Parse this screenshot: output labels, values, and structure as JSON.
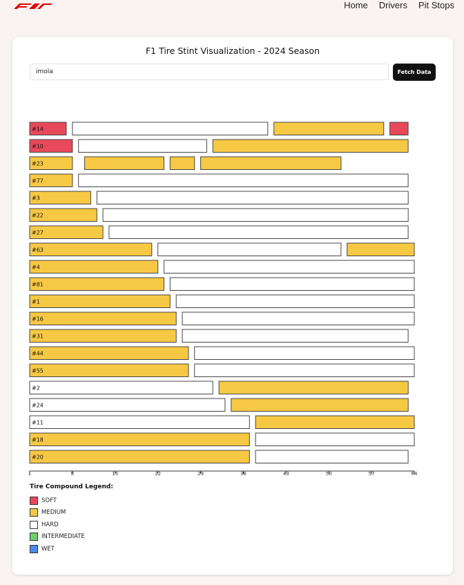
{
  "nav": {
    "links": [
      "Home",
      "Drivers",
      "Pit Stops"
    ]
  },
  "page": {
    "title": "F1 Tire Stint Visualization - 2024 Season"
  },
  "search": {
    "value": "imola",
    "button_label": "Fetch Data"
  },
  "colors": {
    "SOFT": "#e8495a",
    "MEDIUM": "#f7c844",
    "HARD": "#ffffff",
    "INTERMEDIATE": "#6fcf6a",
    "WET": "#4a8be8",
    "brand": "#e10600"
  },
  "legend": {
    "title": "Tire Compound Legend:",
    "items": [
      {
        "label": "SOFT",
        "compound": "SOFT"
      },
      {
        "label": "MEDIUM",
        "compound": "MEDIUM"
      },
      {
        "label": "HARD",
        "compound": "HARD"
      },
      {
        "label": "INTERMEDIATE",
        "compound": "INTERMEDIATE"
      },
      {
        "label": "WET",
        "compound": "WET"
      }
    ]
  },
  "chart_data": {
    "type": "bar",
    "subtype": "horizontal-stacked-stints",
    "x_ticks": [
      1,
      8,
      15,
      22,
      29,
      36,
      43,
      50,
      57,
      64
    ],
    "xlim": [
      1,
      64
    ],
    "drivers": [
      {
        "label": "#14",
        "stints": [
          {
            "compound": "SOFT",
            "start": 1,
            "end": 7
          },
          {
            "compound": "HARD",
            "start": 8,
            "end": 40
          },
          {
            "compound": "MEDIUM",
            "start": 41,
            "end": 59
          },
          {
            "compound": "SOFT",
            "start": 60,
            "end": 63
          }
        ]
      },
      {
        "label": "#10",
        "stints": [
          {
            "compound": "SOFT",
            "start": 1,
            "end": 8
          },
          {
            "compound": "HARD",
            "start": 9,
            "end": 30
          },
          {
            "compound": "MEDIUM",
            "start": 31,
            "end": 63
          }
        ]
      },
      {
        "label": "#23",
        "stints": [
          {
            "compound": "MEDIUM",
            "start": 1,
            "end": 8
          },
          {
            "compound": "MEDIUM",
            "start": 10,
            "end": 23
          },
          {
            "compound": "MEDIUM",
            "start": 24,
            "end": 28
          },
          {
            "compound": "MEDIUM",
            "start": 29,
            "end": 52
          }
        ]
      },
      {
        "label": "#77",
        "stints": [
          {
            "compound": "MEDIUM",
            "start": 1,
            "end": 8
          },
          {
            "compound": "HARD",
            "start": 9,
            "end": 63
          }
        ]
      },
      {
        "label": "#3",
        "stints": [
          {
            "compound": "MEDIUM",
            "start": 1,
            "end": 11
          },
          {
            "compound": "HARD",
            "start": 12,
            "end": 63
          }
        ]
      },
      {
        "label": "#22",
        "stints": [
          {
            "compound": "MEDIUM",
            "start": 1,
            "end": 12
          },
          {
            "compound": "HARD",
            "start": 13,
            "end": 63
          }
        ]
      },
      {
        "label": "#27",
        "stints": [
          {
            "compound": "MEDIUM",
            "start": 1,
            "end": 13
          },
          {
            "compound": "HARD",
            "start": 14,
            "end": 63
          }
        ]
      },
      {
        "label": "#63",
        "stints": [
          {
            "compound": "MEDIUM",
            "start": 1,
            "end": 21
          },
          {
            "compound": "HARD",
            "start": 22,
            "end": 52
          },
          {
            "compound": "MEDIUM",
            "start": 53,
            "end": 64
          }
        ]
      },
      {
        "label": "#4",
        "stints": [
          {
            "compound": "MEDIUM",
            "start": 1,
            "end": 22
          },
          {
            "compound": "HARD",
            "start": 23,
            "end": 64
          }
        ]
      },
      {
        "label": "#81",
        "stints": [
          {
            "compound": "MEDIUM",
            "start": 1,
            "end": 23
          },
          {
            "compound": "HARD",
            "start": 24,
            "end": 64
          }
        ]
      },
      {
        "label": "#1",
        "stints": [
          {
            "compound": "MEDIUM",
            "start": 1,
            "end": 24
          },
          {
            "compound": "HARD",
            "start": 25,
            "end": 64
          }
        ]
      },
      {
        "label": "#16",
        "stints": [
          {
            "compound": "MEDIUM",
            "start": 1,
            "end": 25
          },
          {
            "compound": "HARD",
            "start": 26,
            "end": 64
          }
        ]
      },
      {
        "label": "#31",
        "stints": [
          {
            "compound": "MEDIUM",
            "start": 1,
            "end": 25
          },
          {
            "compound": "HARD",
            "start": 26,
            "end": 63
          }
        ]
      },
      {
        "label": "#44",
        "stints": [
          {
            "compound": "MEDIUM",
            "start": 1,
            "end": 27
          },
          {
            "compound": "HARD",
            "start": 28,
            "end": 64
          }
        ]
      },
      {
        "label": "#55",
        "stints": [
          {
            "compound": "MEDIUM",
            "start": 1,
            "end": 27
          },
          {
            "compound": "HARD",
            "start": 28,
            "end": 64
          }
        ]
      },
      {
        "label": "#2",
        "stints": [
          {
            "compound": "HARD",
            "start": 1,
            "end": 31
          },
          {
            "compound": "MEDIUM",
            "start": 32,
            "end": 63
          }
        ]
      },
      {
        "label": "#24",
        "stints": [
          {
            "compound": "HARD",
            "start": 1,
            "end": 33
          },
          {
            "compound": "MEDIUM",
            "start": 34,
            "end": 63
          }
        ]
      },
      {
        "label": "#11",
        "stints": [
          {
            "compound": "HARD",
            "start": 1,
            "end": 37
          },
          {
            "compound": "MEDIUM",
            "start": 38,
            "end": 64
          }
        ]
      },
      {
        "label": "#18",
        "stints": [
          {
            "compound": "MEDIUM",
            "start": 1,
            "end": 37
          },
          {
            "compound": "HARD",
            "start": 38,
            "end": 64
          }
        ]
      },
      {
        "label": "#20",
        "stints": [
          {
            "compound": "MEDIUM",
            "start": 1,
            "end": 37
          },
          {
            "compound": "HARD",
            "start": 38,
            "end": 63
          }
        ]
      }
    ]
  }
}
